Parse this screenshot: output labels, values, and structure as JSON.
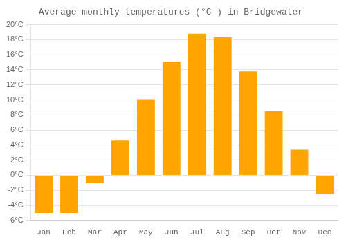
{
  "chart_data": {
    "type": "bar",
    "title": "Average monthly temperatures (°C ) in Bridgewater",
    "categories": [
      "Jan",
      "Feb",
      "Mar",
      "Apr",
      "May",
      "Jun",
      "Jul",
      "Aug",
      "Sep",
      "Oct",
      "Nov",
      "Dec"
    ],
    "values": [
      -5.0,
      -5.0,
      -1.0,
      4.6,
      10.1,
      15.1,
      18.8,
      18.3,
      13.8,
      8.5,
      3.4,
      -2.5
    ],
    "color": "#FFA500",
    "ylim": [
      -6,
      20
    ],
    "yticks": [
      {
        "value": -6,
        "label": "-6°C"
      },
      {
        "value": -4,
        "label": "-4°C"
      },
      {
        "value": -2,
        "label": "-2°C"
      },
      {
        "value": 0,
        "label": "0°C"
      },
      {
        "value": 2,
        "label": "2°C"
      },
      {
        "value": 4,
        "label": "4°C"
      },
      {
        "value": 6,
        "label": "6°C"
      },
      {
        "value": 8,
        "label": "8°C"
      },
      {
        "value": 10,
        "label": "10°C"
      },
      {
        "value": 12,
        "label": "12°C"
      },
      {
        "value": 14,
        "label": "14°C"
      },
      {
        "value": 16,
        "label": "16°C"
      },
      {
        "value": 18,
        "label": "18°C"
      },
      {
        "value": 20,
        "label": "20°C"
      }
    ],
    "grid": true
  }
}
